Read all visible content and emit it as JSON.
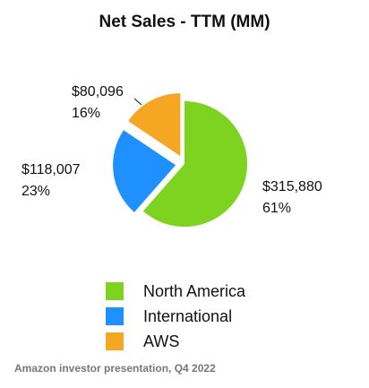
{
  "chart_data": {
    "type": "pie",
    "title": "Net Sales - TTM (MM)",
    "slices": [
      {
        "name": "North America",
        "value": 315880,
        "value_label": "$315,880",
        "percent_label": "61%",
        "color": "#7ED321"
      },
      {
        "name": "International",
        "value": 118007,
        "value_label": "$118,007",
        "percent_label": "23%",
        "color": "#1E90FF"
      },
      {
        "name": "AWS",
        "value": 80096,
        "value_label": "$80,096",
        "percent_label": "16%",
        "color": "#F5A623"
      }
    ],
    "legend_position": "bottom"
  },
  "source": "Amazon investor presentation, Q4 2022"
}
